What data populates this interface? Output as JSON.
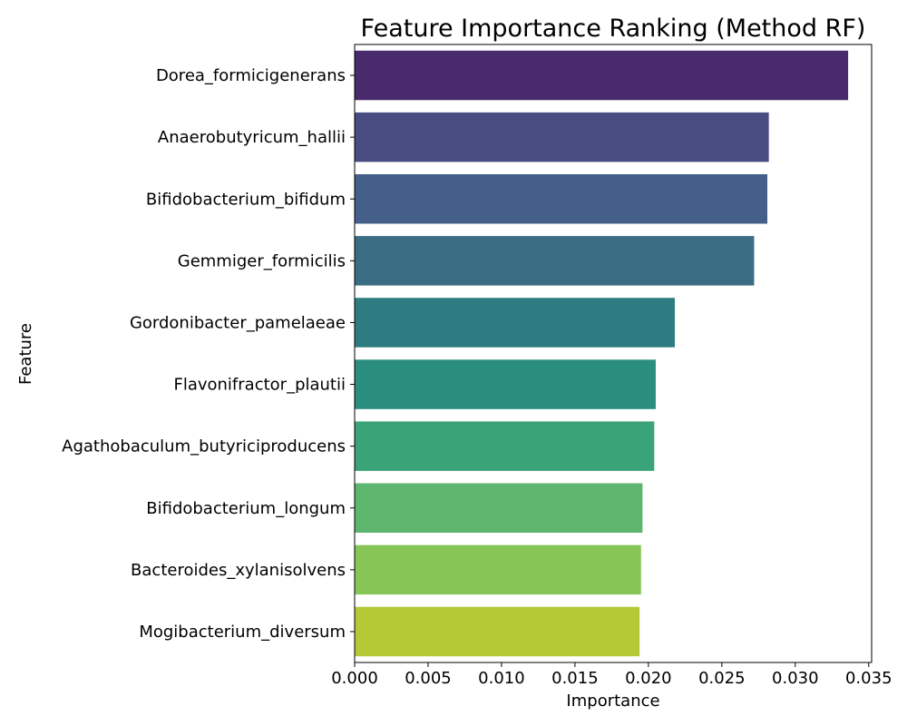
{
  "chart_data": {
    "type": "bar",
    "orientation": "horizontal",
    "title": "Feature Importance Ranking (Method RF)",
    "xlabel": "Importance",
    "ylabel": "Feature",
    "xlim": [
      0,
      0.0352
    ],
    "x_ticks": [
      "0.000",
      "0.005",
      "0.010",
      "0.015",
      "0.020",
      "0.025",
      "0.030",
      "0.035"
    ],
    "grid": false,
    "categories": [
      "Dorea_formicigenerans",
      "Anaerobutyricum_hallii",
      "Bifidobacterium_bifidum",
      "Gemmiger_formicilis",
      "Gordonibacter_pamelaeae",
      "Flavonifractor_plautii",
      "Agathobaculum_butyriciproducens",
      "Bifidobacterium_longum",
      "Bacteroides_xylanisolvens",
      "Mogibacterium_diversum"
    ],
    "values": [
      0.0336,
      0.0282,
      0.0281,
      0.0272,
      0.0218,
      0.0205,
      0.0204,
      0.0196,
      0.0195,
      0.0194
    ],
    "colors": [
      "#482a6d",
      "#484c80",
      "#435f8a",
      "#3a6d83",
      "#2e7c81",
      "#2a8d7d",
      "#3aa378",
      "#5eb56d",
      "#87c557",
      "#b3c935"
    ]
  }
}
